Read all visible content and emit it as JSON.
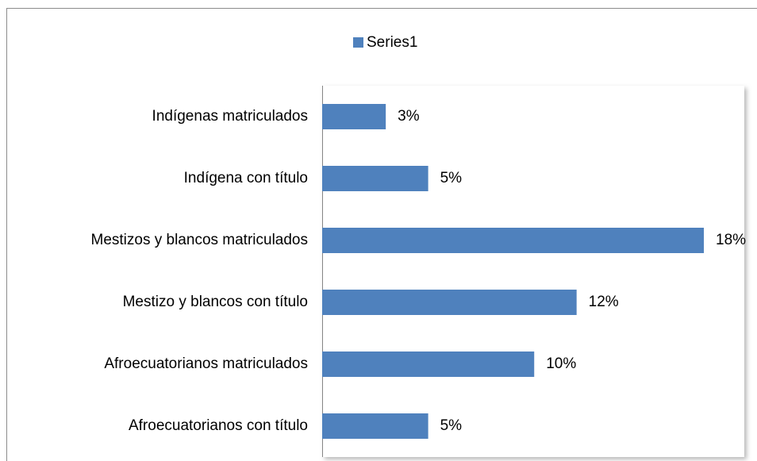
{
  "chart_data": {
    "type": "bar",
    "orientation": "horizontal",
    "categories": [
      "Indígenas matriculados",
      "Indígena con título",
      "Mestizos y blancos matriculados",
      "Mestizo y blancos con título",
      "Afroecuatorianos matriculados",
      "Afroecuatorianos con título"
    ],
    "series": [
      {
        "name": "Series1",
        "color": "#4f81bd",
        "values": [
          3,
          5,
          18,
          12,
          10,
          5
        ],
        "value_labels": [
          "3%",
          "5%",
          "18%",
          "12%",
          "10%",
          "5%"
        ]
      }
    ],
    "legend": "top"
  }
}
